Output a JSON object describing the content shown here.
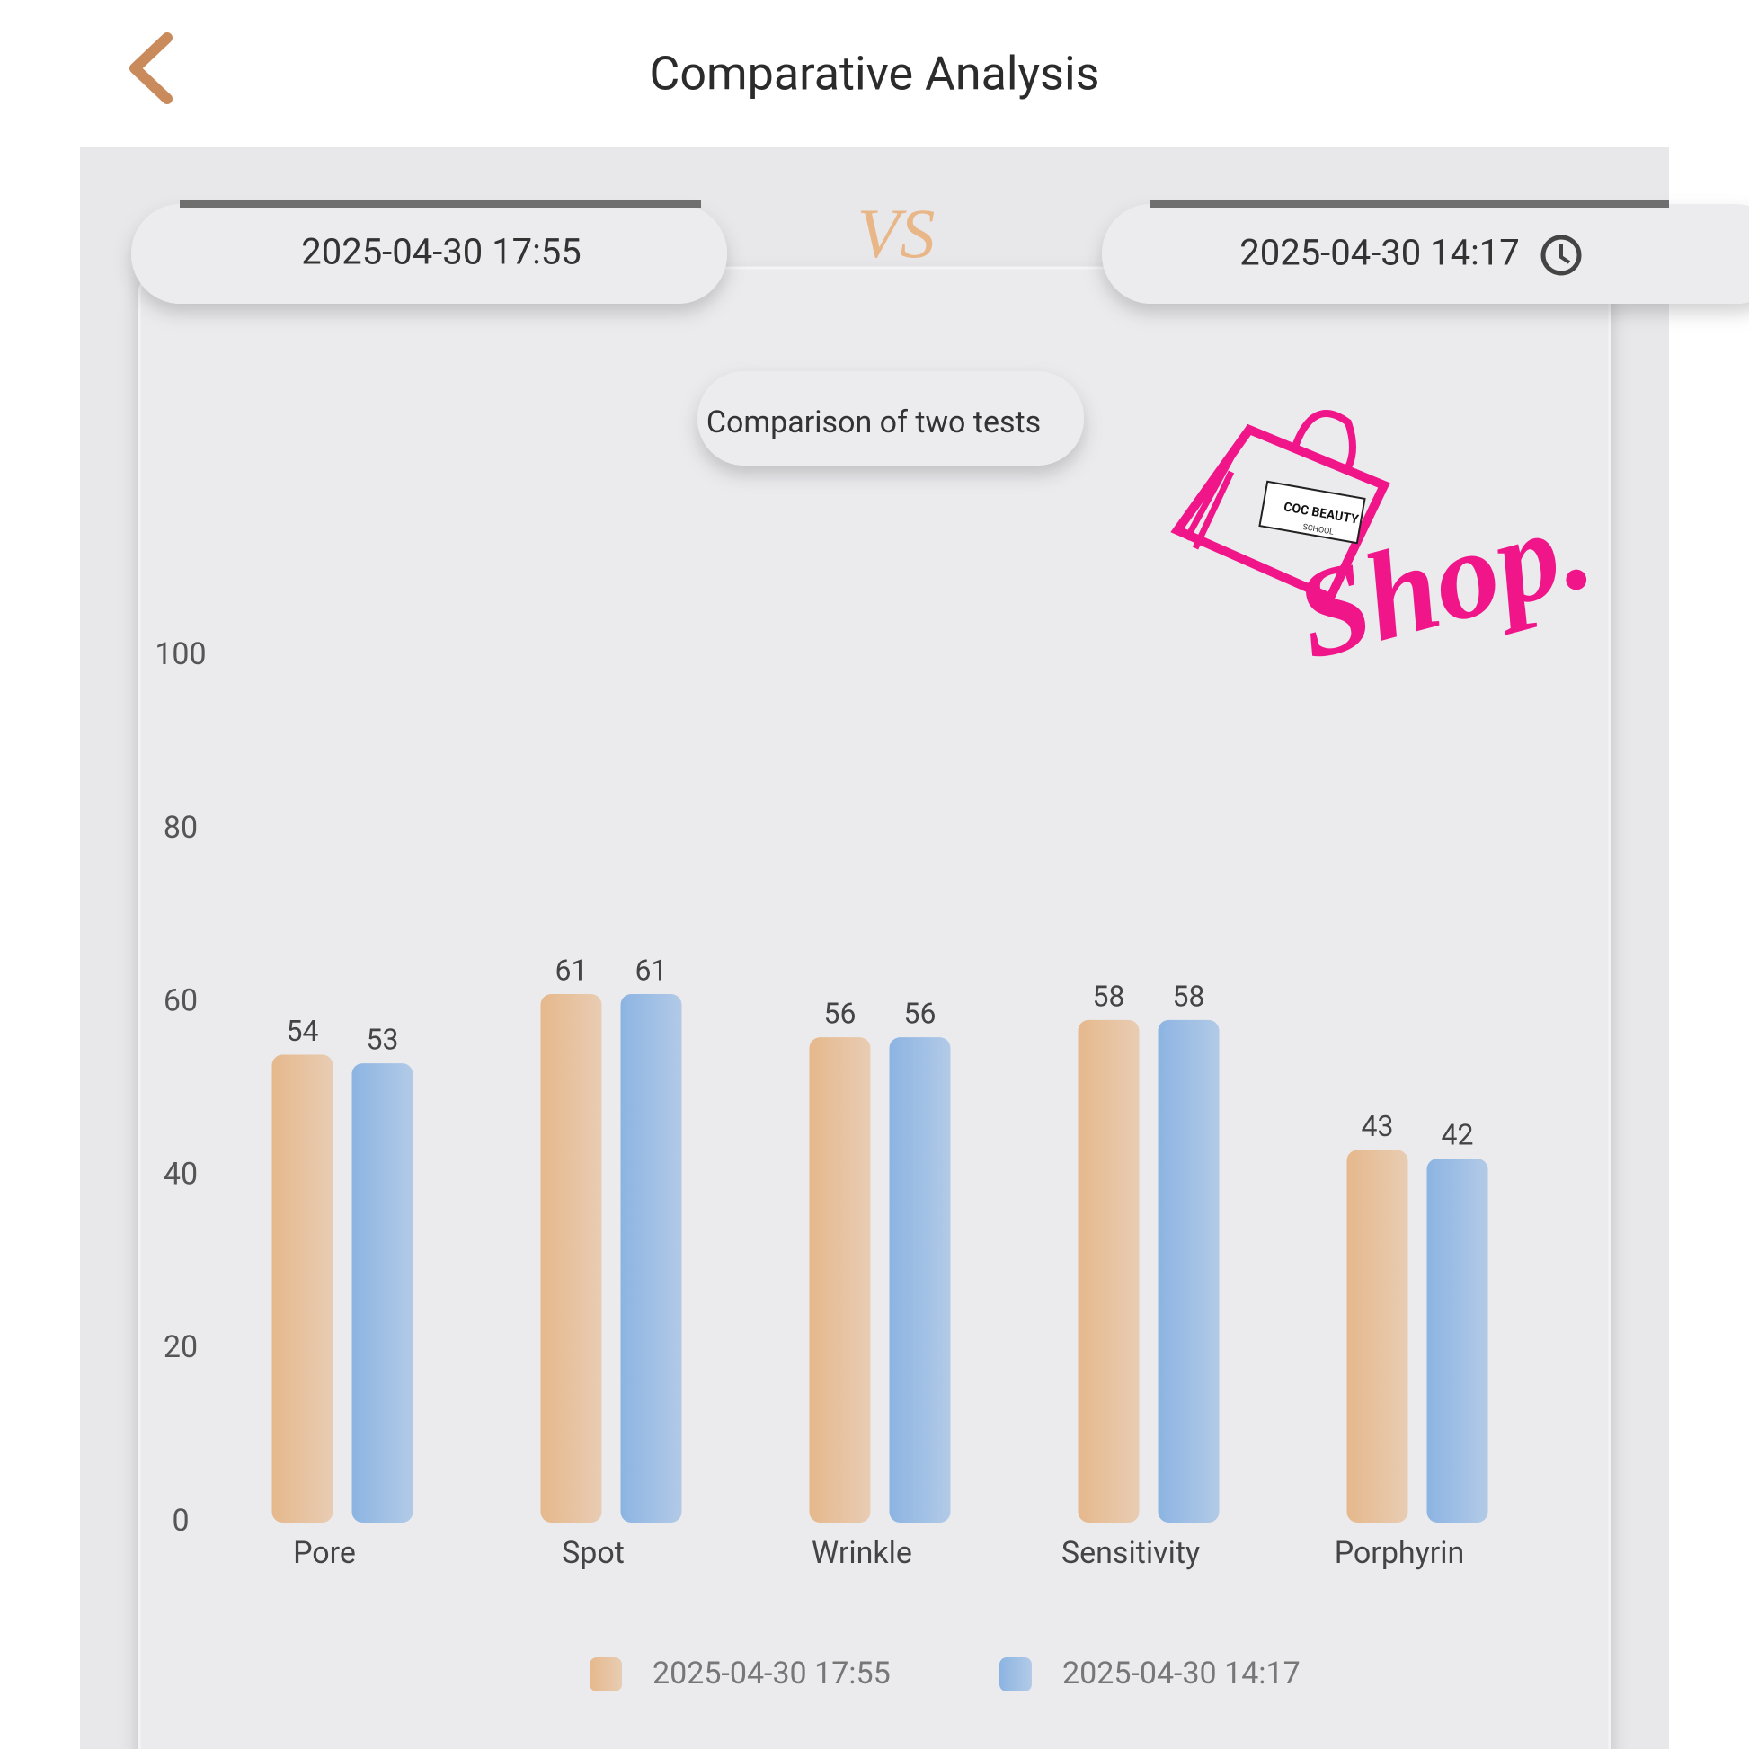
{
  "header": {
    "title": "Comparative Analysis"
  },
  "compare": {
    "left": "2025-04-30 17:55",
    "vs": "VS",
    "right": "2025-04-30 14:17"
  },
  "logo": {
    "brand": "COC BEAUTY",
    "sub": "SCHOOL",
    "text": "Shop."
  },
  "chart_data": {
    "type": "bar",
    "title": "Comparison of two tests",
    "categories": [
      "Pore",
      "Spot",
      "Wrinkle",
      "Sensitivity",
      "Porphyrin"
    ],
    "series": [
      {
        "name": "2025-04-30 17:55",
        "color": "#e6b88c",
        "values": [
          54,
          61,
          56,
          58,
          43
        ]
      },
      {
        "name": "2025-04-30 14:17",
        "color": "#8cb4e2",
        "values": [
          53,
          61,
          56,
          58,
          42
        ]
      }
    ],
    "ylim": [
      0,
      100
    ],
    "yticks": [
      0,
      20,
      40,
      60,
      80,
      100
    ],
    "grid": false
  }
}
